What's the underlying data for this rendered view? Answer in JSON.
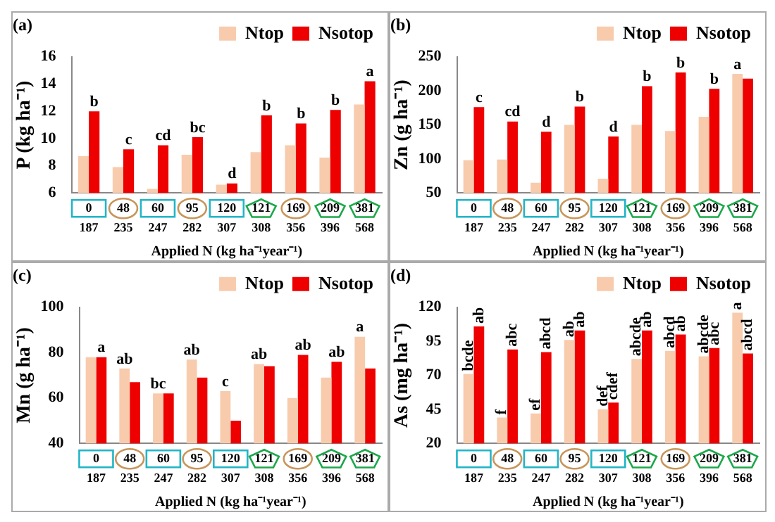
{
  "chart_data": [
    {
      "type": "bar",
      "title": "(a)",
      "xlabel": "Applied N (kg ha⁻¹year⁻¹)",
      "ylabel": "P (kg ha⁻¹)",
      "categories": [
        "0\n187",
        "48\n235",
        "60\n247",
        "95\n282",
        "120\n307",
        "121\n308",
        "169\n356",
        "209\n396",
        "381\n568"
      ],
      "ylim": [
        6,
        16
      ],
      "yticks": [
        6,
        8,
        10,
        12,
        14,
        16
      ],
      "grid": false,
      "legend": "top right",
      "series": [
        {
          "name": "Ntop",
          "color": "#f8cbad",
          "values": [
            8.7,
            7.9,
            6.3,
            8.8,
            6.6,
            9.0,
            9.5,
            8.6,
            12.5
          ]
        },
        {
          "name": "Nsotop",
          "color": "#ee0000",
          "values": [
            12.0,
            9.2,
            9.5,
            10.1,
            6.7,
            11.7,
            11.1,
            12.1,
            14.2
          ],
          "value_labels": [
            "b",
            "c",
            "cd",
            "bc",
            "d",
            "b",
            "b",
            "b",
            "a"
          ]
        }
      ]
    },
    {
      "type": "bar",
      "title": "(b)",
      "xlabel": "Applied N (kg ha⁻¹year⁻¹)",
      "ylabel": "Zn (g ha⁻¹)",
      "categories": [
        "0\n187",
        "48\n235",
        "60\n247",
        "95\n282",
        "120\n307",
        "121\n308",
        "169\n356",
        "209\n396",
        "381\n568"
      ],
      "ylim": [
        50,
        250
      ],
      "yticks": [
        50,
        100,
        150,
        200,
        250
      ],
      "grid": false,
      "legend": "top right",
      "series": [
        {
          "name": "Ntop",
          "color": "#f8cbad",
          "values": [
            98,
            99,
            65,
            150,
            71,
            150,
            141,
            162,
            225
          ],
          "value_labels": [
            null,
            null,
            null,
            null,
            null,
            null,
            null,
            null,
            "a"
          ]
        },
        {
          "name": "Nsotop",
          "color": "#ee0000",
          "values": [
            176,
            155,
            140,
            177,
            133,
            207,
            227,
            203,
            218
          ],
          "value_labels": [
            "c",
            "cd",
            "d",
            "b",
            "d",
            "b",
            "b",
            "b",
            null
          ]
        }
      ]
    },
    {
      "type": "bar",
      "title": "(c)",
      "xlabel": "Applied N (kg ha⁻¹year⁻¹)",
      "ylabel": "Mn (g ha⁻¹)",
      "categories": [
        "0\n187",
        "48\n235",
        "60\n247",
        "95\n282",
        "120\n307",
        "121\n308",
        "169\n356",
        "209\n396",
        "381\n568"
      ],
      "ylim": [
        40,
        100
      ],
      "yticks": [
        40,
        60,
        80,
        100
      ],
      "grid": false,
      "legend": "top right",
      "series": [
        {
          "name": "Ntop",
          "color": "#f8cbad",
          "values": [
            78,
            73,
            62,
            77,
            63,
            75,
            60,
            69,
            87
          ],
          "value_labels": [
            null,
            "ab",
            "bc",
            "ab",
            "c",
            "ab",
            null,
            null,
            "a"
          ]
        },
        {
          "name": "Nsotop",
          "color": "#ee0000",
          "values": [
            78,
            67,
            62,
            69,
            50,
            74,
            79,
            76,
            73
          ],
          "value_labels": [
            "a",
            null,
            null,
            null,
            null,
            null,
            "ab",
            "ab",
            null
          ]
        }
      ]
    },
    {
      "type": "bar",
      "title": "(d)",
      "xlabel": "Applied N (kg ha⁻¹year⁻¹)",
      "ylabel": "As (mg ha⁻¹)",
      "categories": [
        "0\n187",
        "48\n235",
        "60\n247",
        "95\n282",
        "120\n307",
        "121\n308",
        "169\n356",
        "209\n396",
        "381\n568"
      ],
      "ylim": [
        20,
        120
      ],
      "yticks": [
        20,
        45,
        70,
        95,
        120
      ],
      "grid": false,
      "legend": "top right",
      "series": [
        {
          "name": "Ntop",
          "color": "#f8cbad",
          "values": [
            71,
            39,
            42,
            96,
            45,
            82,
            88,
            84,
            116
          ],
          "value_labels": [
            "bcde",
            "f",
            "ef",
            "ab",
            "def",
            "abcde",
            "abcd",
            "abcde",
            "a"
          ]
        },
        {
          "name": "Nsotop",
          "color": "#ee0000",
          "values": [
            106,
            89,
            87,
            103,
            50,
            103,
            100,
            90,
            86
          ],
          "value_labels": [
            "ab",
            "abc",
            "abcd",
            "ab",
            "cdef",
            "ab",
            "ab",
            "abc",
            "abcd"
          ]
        }
      ]
    }
  ]
}
